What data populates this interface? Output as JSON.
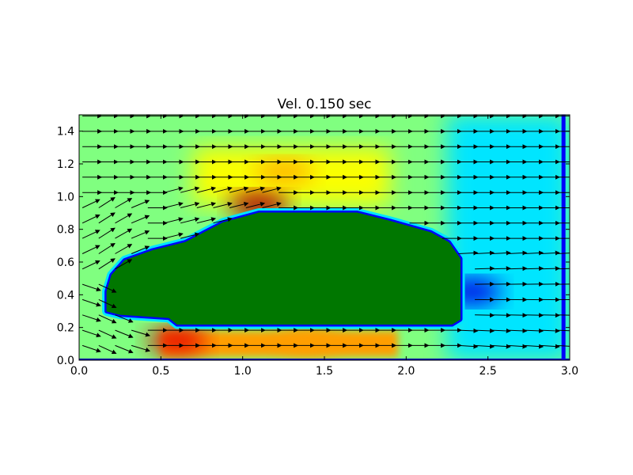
{
  "chart_data": {
    "type": "heatmap",
    "title": "Vel.  0.150 sec",
    "xlabel": "",
    "ylabel": "",
    "xlim": [
      0.0,
      3.0
    ],
    "ylim": [
      0.0,
      1.5
    ],
    "x_ticks": [
      "0.0",
      "0.5",
      "1.0",
      "1.5",
      "2.0",
      "2.5",
      "3.0"
    ],
    "y_ticks": [
      "0.0",
      "0.2",
      "0.4",
      "0.6",
      "0.8",
      "1.0",
      "1.2",
      "1.4"
    ],
    "grid": false,
    "colormap": "jet",
    "obstacle_color": "#007700",
    "arrow_color": "#000000",
    "obstacle_outline": [
      [
        0.17,
        0.3
      ],
      [
        0.17,
        0.42
      ],
      [
        0.2,
        0.52
      ],
      [
        0.28,
        0.61
      ],
      [
        0.45,
        0.67
      ],
      [
        0.65,
        0.72
      ],
      [
        0.88,
        0.84
      ],
      [
        1.1,
        0.9
      ],
      [
        1.7,
        0.9
      ],
      [
        1.9,
        0.85
      ],
      [
        2.15,
        0.78
      ],
      [
        2.26,
        0.72
      ],
      [
        2.33,
        0.62
      ],
      [
        2.33,
        0.25
      ],
      [
        2.28,
        0.22
      ],
      [
        0.6,
        0.22
      ],
      [
        0.55,
        0.26
      ],
      [
        0.25,
        0.28
      ]
    ],
    "speed_hotspots": [
      {
        "x": 1.1,
        "y": 0.95,
        "speed": 0.95
      },
      {
        "x": 0.6,
        "y": 0.12,
        "speed": 0.9
      },
      {
        "x": 1.25,
        "y": 1.15,
        "speed": 0.7
      },
      {
        "x": 1.4,
        "y": 0.12,
        "speed": 0.72
      },
      {
        "x": 2.4,
        "y": 0.42,
        "speed": 0.1
      }
    ]
  }
}
